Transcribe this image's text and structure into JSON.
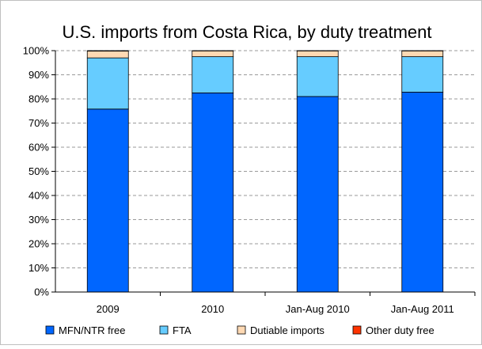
{
  "chart_data": {
    "type": "bar",
    "stacked": true,
    "title": "U.S. imports from Costa Rica, by duty treatment",
    "categories": [
      "2009",
      "2010",
      "Jan-Aug 2010",
      "Jan-Aug 2011"
    ],
    "series": [
      {
        "name": "MFN/NTR free",
        "color": "#0066ff",
        "values": [
          75.8,
          82.5,
          81.0,
          82.8
        ]
      },
      {
        "name": "FTA",
        "color": "#66ccff",
        "values": [
          21.2,
          15.0,
          16.5,
          14.7
        ]
      },
      {
        "name": "Dutiable imports",
        "color": "#ffd9b3",
        "values": [
          2.8,
          2.4,
          2.4,
          2.4
        ]
      },
      {
        "name": "Other duty free",
        "color": "#ff3300",
        "values": [
          0.2,
          0.1,
          0.1,
          0.1
        ]
      }
    ],
    "y_ticks": [
      "0%",
      "10%",
      "20%",
      "30%",
      "40%",
      "50%",
      "60%",
      "70%",
      "80%",
      "90%",
      "100%"
    ],
    "ylim": [
      0,
      100
    ],
    "xlabel": "",
    "ylabel": "",
    "grid": true,
    "legend_position": "bottom"
  }
}
